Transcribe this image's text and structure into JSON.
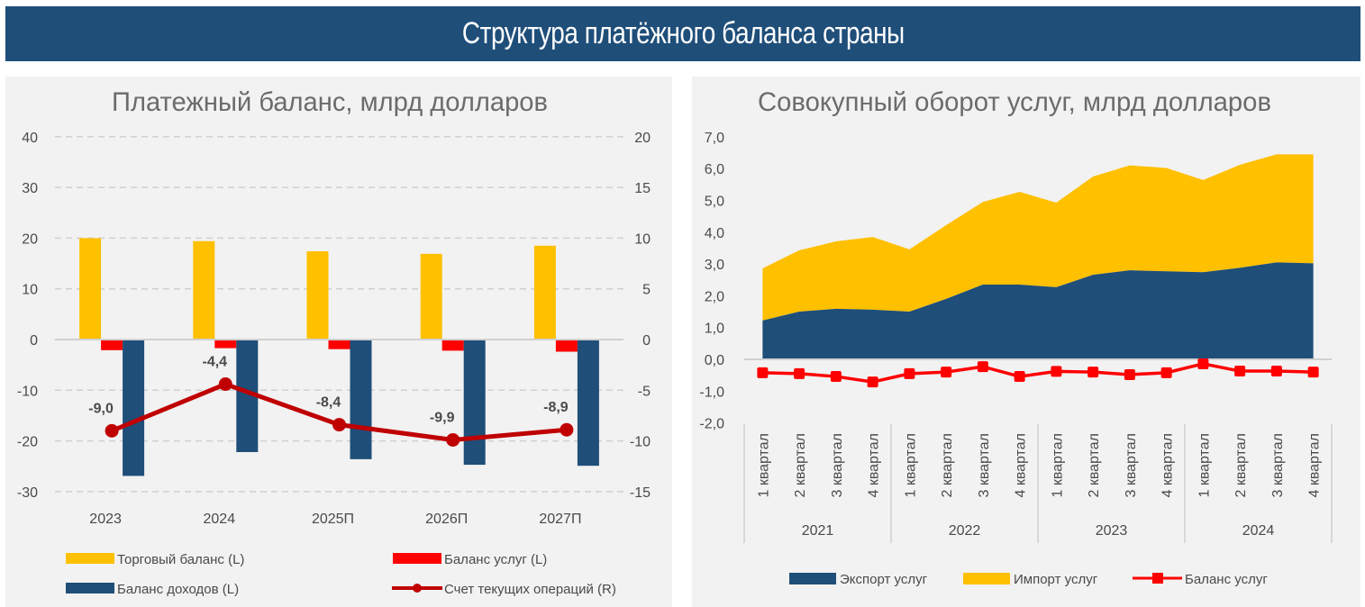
{
  "page": {
    "title": "Структура платёжного баланса страны"
  },
  "chart_data": [
    {
      "type": "bar",
      "title": "Платежный баланс, млрд долларов",
      "categories": [
        "2023",
        "2024",
        "2025П",
        "2026П",
        "2027П"
      ],
      "y_left": {
        "range": [
          -30,
          40
        ],
        "ticks": [
          "40",
          "30",
          "20",
          "10",
          "0",
          "-10",
          "-20",
          "-30"
        ],
        "tick_values": [
          40,
          30,
          20,
          10,
          0,
          -10,
          -20,
          -30
        ]
      },
      "y_right": {
        "range": [
          -15,
          20
        ],
        "ticks": [
          "20",
          "15",
          "10",
          "5",
          "0",
          "-5",
          "-10",
          "-15"
        ],
        "tick_values": [
          20,
          15,
          10,
          5,
          0,
          -5,
          -10,
          -15
        ]
      },
      "grid": "dashed horizontal",
      "series": [
        {
          "name": "Торговый баланс (L)",
          "kind": "bar",
          "axis": "left",
          "color": "#ffc000",
          "values": [
            20.0,
            19.4,
            17.4,
            16.9,
            18.5
          ]
        },
        {
          "name": "Баланс услуг (L)",
          "kind": "bar",
          "axis": "left",
          "color": "#ff0000",
          "values": [
            -2.1,
            -1.7,
            -1.9,
            -2.2,
            -2.4
          ]
        },
        {
          "name": "Баланс доходов (L)",
          "kind": "bar",
          "axis": "left",
          "color": "#1f4e79",
          "values": [
            -26.9,
            -22.2,
            -23.6,
            -24.7,
            -24.9
          ]
        },
        {
          "name": "Счет текущих операций (R)",
          "kind": "line",
          "axis": "right",
          "color": "#c00000",
          "values": [
            -9.0,
            -4.4,
            -8.4,
            -9.9,
            -8.9
          ],
          "labels": [
            "-9,0",
            "-4,4",
            "-8,4",
            "-9,9",
            "-8,9"
          ]
        }
      ],
      "legend": {
        "placement": "bottom",
        "items": [
          "Торговый баланс (L)",
          "Баланс услуг (L)",
          "Баланс доходов (L)",
          "Счет текущих операций (R)"
        ]
      }
    },
    {
      "type": "area",
      "title": "Совокупный оборот услуг, млрд долларов",
      "categories": [
        "1 квартал",
        "2 квартал",
        "3 квартал",
        "4 квартал",
        "1 квартал",
        "2 квартал",
        "3 квартал",
        "4 квартал",
        "1 квартал",
        "2 квартал",
        "3 квартал",
        "4 квартал",
        "1 квартал",
        "2 квартал",
        "3 квартал",
        "4 квартал"
      ],
      "groups": [
        "2021",
        "2022",
        "2023",
        "2024"
      ],
      "y": {
        "range": [
          -2.0,
          7.0
        ],
        "ticks": [
          "7,0",
          "6,0",
          "5,0",
          "4,0",
          "3,0",
          "2,0",
          "1,0",
          "0,0",
          "-1,0",
          "-2,0"
        ],
        "tick_values": [
          7,
          6,
          5,
          4,
          3,
          2,
          1,
          0,
          -1,
          -2
        ]
      },
      "grid": "none",
      "stacked": true,
      "series": [
        {
          "name": "Экспорт услуг",
          "kind": "area",
          "color": "#1f4e79",
          "values": [
            1.22,
            1.5,
            1.59,
            1.56,
            1.5,
            1.9,
            2.35,
            2.35,
            2.27,
            2.66,
            2.8,
            2.77,
            2.74,
            2.88,
            3.05,
            3.02
          ]
        },
        {
          "name": "Импорт услуг",
          "kind": "area",
          "color": "#ffc000",
          "values": [
            1.64,
            1.93,
            2.12,
            2.29,
            1.96,
            2.32,
            2.6,
            2.92,
            2.66,
            3.09,
            3.3,
            3.25,
            2.9,
            3.24,
            3.4,
            3.43
          ]
        },
        {
          "name": "Баланс услуг",
          "kind": "line",
          "color": "#ff0000",
          "values": [
            -0.42,
            -0.45,
            -0.54,
            -0.71,
            -0.45,
            -0.4,
            -0.23,
            -0.54,
            -0.38,
            -0.4,
            -0.48,
            -0.42,
            -0.14,
            -0.37,
            -0.37,
            -0.4
          ]
        }
      ],
      "legend": {
        "placement": "bottom",
        "items": [
          "Экспорт услуг",
          "Импорт услуг",
          "Баланс услуг"
        ]
      }
    }
  ]
}
